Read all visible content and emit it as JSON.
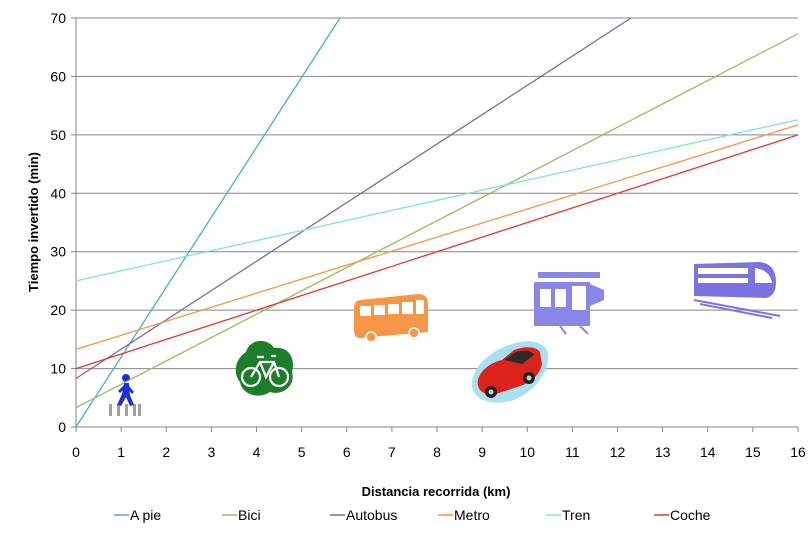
{
  "chart_data": {
    "type": "line",
    "title": "",
    "xlabel": "Distancia recorrida (km)",
    "ylabel": "Tiempo invertido (min)",
    "xlim": [
      0,
      16
    ],
    "ylim": [
      0,
      70
    ],
    "x_ticks": [
      0,
      1,
      2,
      3,
      4,
      5,
      6,
      7,
      8,
      9,
      10,
      11,
      12,
      13,
      14,
      15,
      16
    ],
    "y_ticks": [
      0,
      10,
      20,
      30,
      40,
      50,
      60,
      70
    ],
    "grid": "horizontal",
    "legend_position": "bottom",
    "series": [
      {
        "name": "A pie",
        "color": "#4bacc6",
        "x": [
          0,
          5.85
        ],
        "values": [
          0,
          70
        ],
        "icon": "walking-person-icon"
      },
      {
        "name": "Bici",
        "color": "#9bbb59",
        "x": [
          0,
          16
        ],
        "values": [
          3.3,
          67.3
        ],
        "icon": "bicycle-icon"
      },
      {
        "name": "Autobus",
        "color": "#8064a2",
        "x": [
          0,
          12.3
        ],
        "values": [
          8.3,
          70
        ],
        "icon": "bus-icon"
      },
      {
        "name": "Metro",
        "color": "#f79646",
        "x": [
          0,
          16
        ],
        "values": [
          13.3,
          51.7
        ],
        "icon": "metro-train-icon"
      },
      {
        "name": "Tren",
        "color": "#7fe3d8",
        "x": [
          0,
          16
        ],
        "values": [
          25,
          52.6
        ],
        "icon": "train-icon"
      },
      {
        "name": "Coche",
        "color": "#e03a2e",
        "x": [
          0,
          16
        ],
        "values": [
          10,
          50
        ],
        "icon": "car-icon"
      }
    ]
  }
}
